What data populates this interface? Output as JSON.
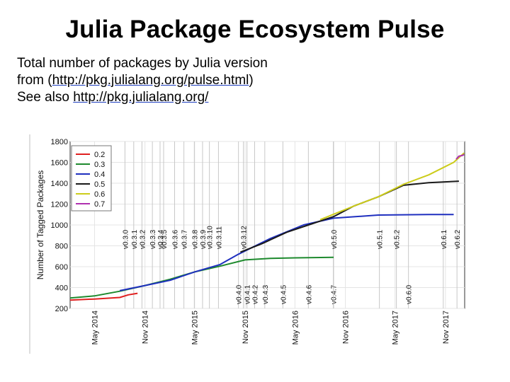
{
  "header": {
    "title": "Julia Package Ecosystem Pulse",
    "line1": "Total number of packages by Julia version",
    "line2_prefix": "from (",
    "line2_link": "http://pkg.julialang.org/pulse.html",
    "line2_suffix": ")",
    "line3_prefix": "See also ",
    "line3_link": "http://pkg.julialang.org/"
  },
  "chart_data": {
    "type": "line",
    "title": "",
    "xlabel": "",
    "ylabel": "Number of Tagged Packages",
    "ylim": [
      200,
      1800
    ],
    "xlim": [
      "2014-02-01",
      "2018-01-10"
    ],
    "yticks": [
      200,
      400,
      600,
      800,
      1000,
      1200,
      1400,
      1600,
      1800
    ],
    "xticks": [
      {
        "date": "2014-05-01",
        "label": "May 2014"
      },
      {
        "date": "2014-11-01",
        "label": "Nov 2014"
      },
      {
        "date": "2015-05-01",
        "label": "May 2015"
      },
      {
        "date": "2015-11-01",
        "label": "Nov 2015"
      },
      {
        "date": "2016-05-01",
        "label": "May 2016"
      },
      {
        "date": "2016-11-01",
        "label": "Nov 2016"
      },
      {
        "date": "2017-05-01",
        "label": "May 2017"
      },
      {
        "date": "2017-11-01",
        "label": "Nov 2017"
      }
    ],
    "grid": true,
    "legend_position": "top-left",
    "releases": [
      {
        "label": "v0.3.0",
        "date": "2014-08-20",
        "pos": "high"
      },
      {
        "label": "v0.3.1",
        "date": "2014-09-21",
        "pos": "high"
      },
      {
        "label": "v0.3.2",
        "date": "2014-10-21",
        "pos": "high"
      },
      {
        "label": "v0.3.3",
        "date": "2014-11-28",
        "pos": "high"
      },
      {
        "label": "v0.3.4",
        "date": "2014-12-26",
        "pos": "high"
      },
      {
        "label": "v0.3.5",
        "date": "2015-01-08",
        "pos": "high"
      },
      {
        "label": "v0.3.6",
        "date": "2015-02-17",
        "pos": "high"
      },
      {
        "label": "v0.3.7",
        "date": "2015-03-23",
        "pos": "high"
      },
      {
        "label": "v0.3.8",
        "date": "2015-04-30",
        "pos": "high"
      },
      {
        "label": "v0.3.9",
        "date": "2015-05-30",
        "pos": "high"
      },
      {
        "label": "v0.3.10",
        "date": "2015-06-24",
        "pos": "high"
      },
      {
        "label": "v0.3.11",
        "date": "2015-07-27",
        "pos": "high"
      },
      {
        "label": "v0.3.12",
        "date": "2015-10-26",
        "pos": "high"
      },
      {
        "label": "v0.4.0",
        "date": "2015-10-08",
        "pos": "low"
      },
      {
        "label": "v0.4.1",
        "date": "2015-11-08",
        "pos": "low"
      },
      {
        "label": "v0.4.2",
        "date": "2015-12-06",
        "pos": "low"
      },
      {
        "label": "v0.4.3",
        "date": "2016-01-12",
        "pos": "low"
      },
      {
        "label": "v0.4.5",
        "date": "2016-03-18",
        "pos": "low"
      },
      {
        "label": "v0.4.6",
        "date": "2016-06-19",
        "pos": "low"
      },
      {
        "label": "v0.4.7",
        "date": "2016-09-18",
        "pos": "low"
      },
      {
        "label": "v0.5.0",
        "date": "2016-09-19",
        "pos": "high"
      },
      {
        "label": "v0.5.1",
        "date": "2017-03-05",
        "pos": "high"
      },
      {
        "label": "v0.5.2",
        "date": "2017-05-06",
        "pos": "high"
      },
      {
        "label": "v0.6.0",
        "date": "2017-06-19",
        "pos": "low"
      },
      {
        "label": "v0.6.1",
        "date": "2017-10-24",
        "pos": "high"
      },
      {
        "label": "v0.6.2",
        "date": "2017-12-13",
        "pos": "high"
      }
    ],
    "series": [
      {
        "name": "0.2",
        "color": "#e02020",
        "x": [
          "2014-02-01",
          "2014-05-01",
          "2014-08-01",
          "2014-09-01",
          "2014-10-05"
        ],
        "y": [
          280,
          290,
          305,
          330,
          345
        ]
      },
      {
        "name": "0.3",
        "color": "#1e8a2e",
        "x": [
          "2014-02-01",
          "2014-05-01",
          "2014-08-01",
          "2014-11-01",
          "2015-02-01",
          "2015-05-01",
          "2015-08-01",
          "2015-11-01",
          "2016-02-01",
          "2016-05-01",
          "2016-09-19"
        ],
        "y": [
          300,
          320,
          365,
          420,
          480,
          550,
          605,
          665,
          680,
          685,
          690
        ]
      },
      {
        "name": "0.4",
        "color": "#1f2fbf",
        "x": [
          "2014-08-01",
          "2014-11-01",
          "2015-02-01",
          "2015-05-01",
          "2015-08-01",
          "2015-10-08",
          "2016-02-01",
          "2016-06-01",
          "2016-09-19",
          "2017-03-01",
          "2017-09-01",
          "2017-12-01"
        ],
        "y": [
          370,
          420,
          470,
          550,
          620,
          720,
          870,
          1000,
          1065,
          1095,
          1100,
          1100
        ]
      },
      {
        "name": "0.5",
        "color": "#1a1a1a",
        "x": [
          "2015-10-15",
          "2016-01-01",
          "2016-04-01",
          "2016-07-01",
          "2016-09-19",
          "2016-12-01",
          "2017-03-01",
          "2017-06-01",
          "2017-09-01",
          "2017-12-20"
        ],
        "y": [
          740,
          820,
          930,
          1010,
          1080,
          1180,
          1270,
          1380,
          1405,
          1420
        ]
      },
      {
        "name": "0.6",
        "color": "#cccc1a",
        "x": [
          "2016-08-01",
          "2016-12-01",
          "2017-03-01",
          "2017-06-01",
          "2017-09-01",
          "2017-12-01",
          "2018-01-08"
        ],
        "y": [
          1050,
          1180,
          1270,
          1390,
          1480,
          1600,
          1690
        ]
      },
      {
        "name": "0.7",
        "color": "#b030b0",
        "x": [
          "2017-12-10",
          "2017-12-20",
          "2018-01-01",
          "2018-01-08"
        ],
        "y": [
          1630,
          1660,
          1665,
          1675
        ]
      }
    ]
  }
}
